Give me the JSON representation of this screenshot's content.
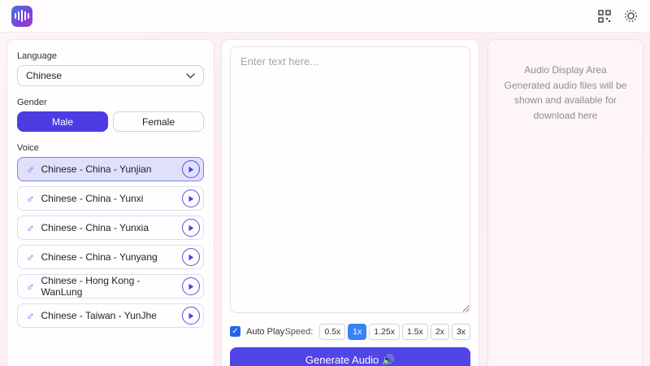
{
  "header": {
    "logo_icon": "audio-waveform-logo",
    "qr_icon": "qr-code-icon",
    "theme_icon": "sun-icon"
  },
  "language_section": {
    "label": "Language",
    "selected": "Chinese"
  },
  "gender_section": {
    "label": "Gender",
    "male_label": "Male",
    "female_label": "Female",
    "selected": "Male"
  },
  "voice_section": {
    "label": "Voice",
    "selected_index": 0,
    "items": [
      {
        "label": "Chinese - China - Yunjian"
      },
      {
        "label": "Chinese - China - Yunxi"
      },
      {
        "label": "Chinese - China - Yunxia"
      },
      {
        "label": "Chinese - China - Yunyang"
      },
      {
        "label": "Chinese - Hong Kong - WanLung"
      },
      {
        "label": "Chinese - Taiwan - YunJhe"
      }
    ]
  },
  "editor": {
    "placeholder": "Enter text here...",
    "autoplay_label": "Auto Play",
    "autoplay_checked": true,
    "speed_label": "Speed:",
    "speeds": [
      "0.5x",
      "1x",
      "1.25x",
      "1.5x",
      "2x",
      "3x"
    ],
    "selected_speed": "1x",
    "generate_label": "Generate Audio 🔊"
  },
  "audio_panel": {
    "title": "Audio Display Area",
    "description": "Generated audio files will be shown and available for download here"
  },
  "colors": {
    "primary_purple": "#4c3ce2",
    "selected_voice_bg": "#dfe1fb",
    "speed_selected_blue": "#3b82f6",
    "checkbox_blue": "#2563eb"
  }
}
